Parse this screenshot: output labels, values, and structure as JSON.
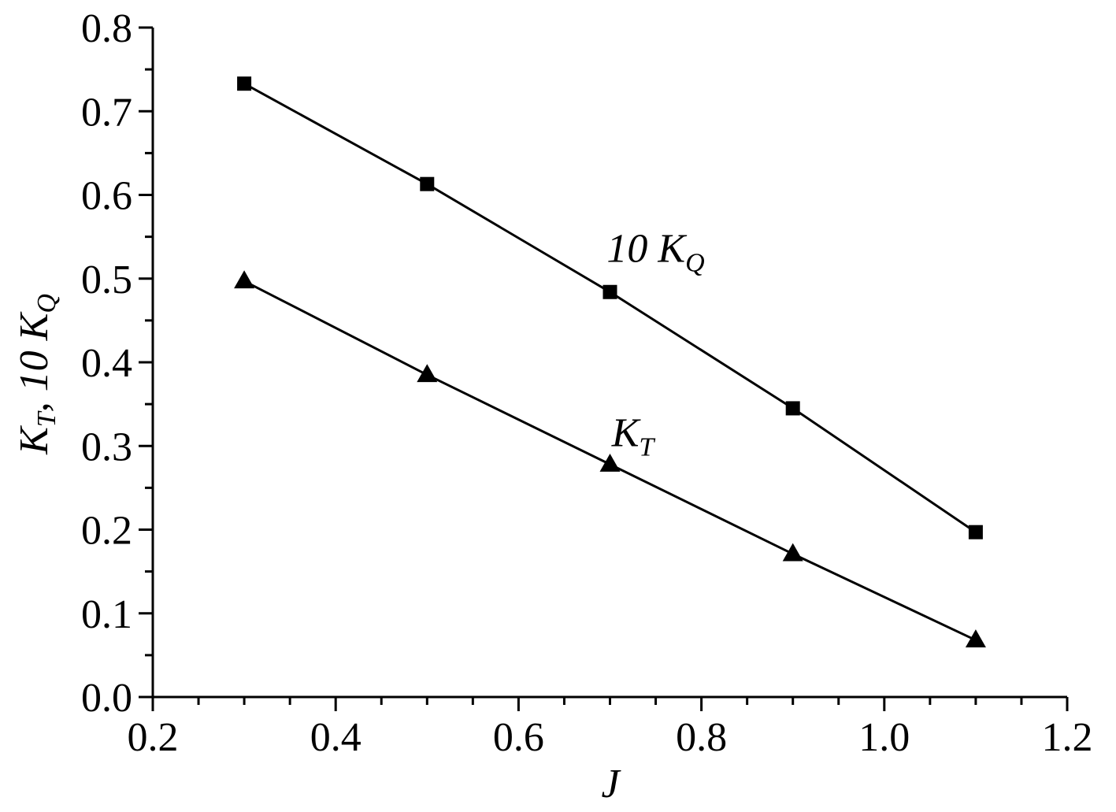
{
  "chart_data": {
    "type": "line",
    "xlabel": "J",
    "ylabel": {
      "main": "K",
      "sub1": "T",
      "mid": ", 10 K",
      "sub2": "Q"
    },
    "xlim": [
      0.2,
      1.2
    ],
    "ylim": [
      0.0,
      0.8
    ],
    "x_ticks": [
      "0.2",
      "0.4",
      "0.6",
      "0.8",
      "1.0",
      "1.2"
    ],
    "y_ticks": [
      "0.0",
      "0.1",
      "0.2",
      "0.3",
      "0.4",
      "0.5",
      "0.6",
      "0.7",
      "0.8"
    ],
    "x": [
      0.3,
      0.5,
      0.7,
      0.9,
      1.1
    ],
    "series": [
      {
        "marker": "square",
        "values": [
          0.733,
          0.613,
          0.484,
          0.345,
          0.197
        ]
      },
      {
        "marker": "triangle",
        "values": [
          0.497,
          0.385,
          0.278,
          0.171,
          0.068
        ]
      }
    ],
    "annotations": [
      {
        "text": "10 K",
        "sub": "Q",
        "x": 0.75,
        "y": 0.52
      },
      {
        "text": "K",
        "sub": "T",
        "x": 0.725,
        "y": 0.3
      }
    ],
    "grid": false,
    "legend": "none",
    "colors": {
      "line": "#000000",
      "marker": "#000000"
    }
  }
}
